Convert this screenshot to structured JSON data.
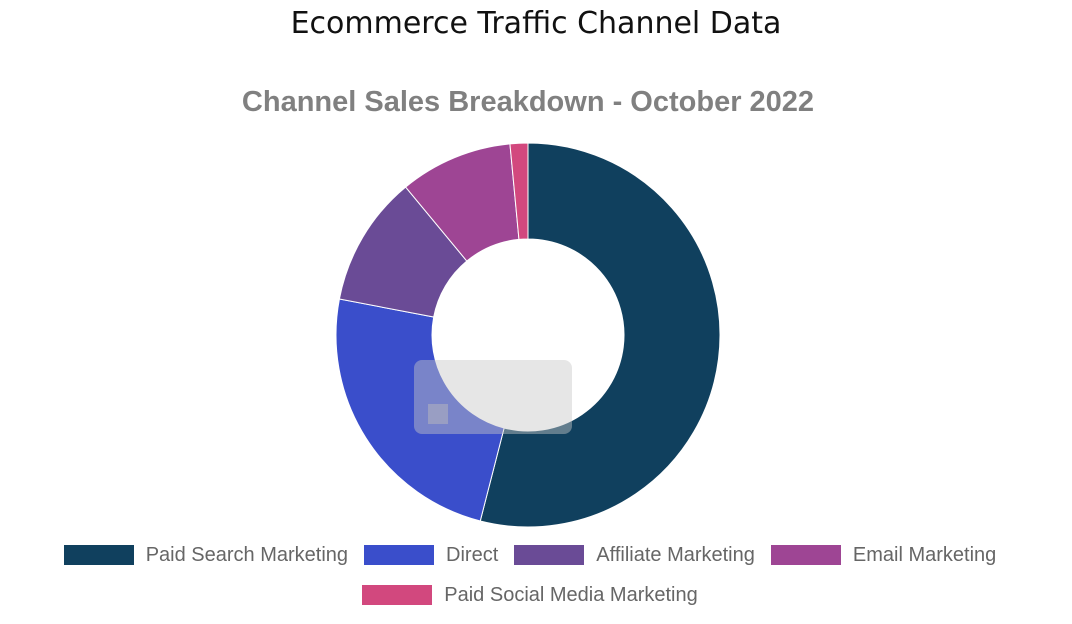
{
  "page": {
    "title": "Ecommerce Traffic Channel Data"
  },
  "chart_data": {
    "type": "pie",
    "variant": "doughnut",
    "title": "Channel Sales Breakdown - October 2022",
    "legend_placement": "bottom",
    "categories": [
      "Paid Search Marketing",
      "Direct",
      "Affiliate Marketing",
      "Email Marketing",
      "Paid Social Media Marketing"
    ],
    "values": [
      54,
      24,
      11,
      9.5,
      1.5
    ],
    "colors": [
      "#10405e",
      "#3a4ecb",
      "#6a4b96",
      "#9e4594",
      "#d2487e"
    ]
  },
  "legend": {
    "rows": [
      [
        0,
        1,
        2,
        3
      ],
      [
        4
      ]
    ]
  }
}
